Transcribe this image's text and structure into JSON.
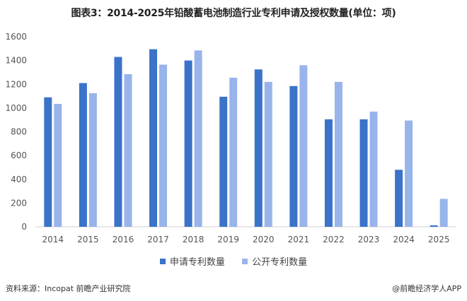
{
  "chart_data": {
    "type": "bar",
    "title": "图表3：2014-2025年铅酸蓄电池制造行业专利申请及授权数量(单位：项)",
    "xlabel": "",
    "ylabel": "",
    "ylim": [
      0,
      1600
    ],
    "yticks": [
      0,
      200,
      400,
      600,
      800,
      1000,
      1200,
      1400,
      1600
    ],
    "grid": false,
    "legend_position": "bottom",
    "categories": [
      "2014",
      "2015",
      "2016",
      "2017",
      "2018",
      "2019",
      "2020",
      "2021",
      "2022",
      "2023",
      "2024",
      "2025"
    ],
    "series": [
      {
        "name": "申请专利数量",
        "color": "#3a73c9",
        "values": [
          1090,
          1210,
          1430,
          1495,
          1400,
          1095,
          1325,
          1185,
          905,
          905,
          480,
          12
        ]
      },
      {
        "name": "公开专利数量",
        "color": "#98b4ea",
        "values": [
          1035,
          1125,
          1285,
          1365,
          1485,
          1255,
          1220,
          1360,
          1220,
          970,
          895,
          235
        ]
      }
    ]
  },
  "footer": {
    "source": "资料来源：Incopat 前瞻产业研究院",
    "brand": "@前瞻经济学人APP"
  }
}
